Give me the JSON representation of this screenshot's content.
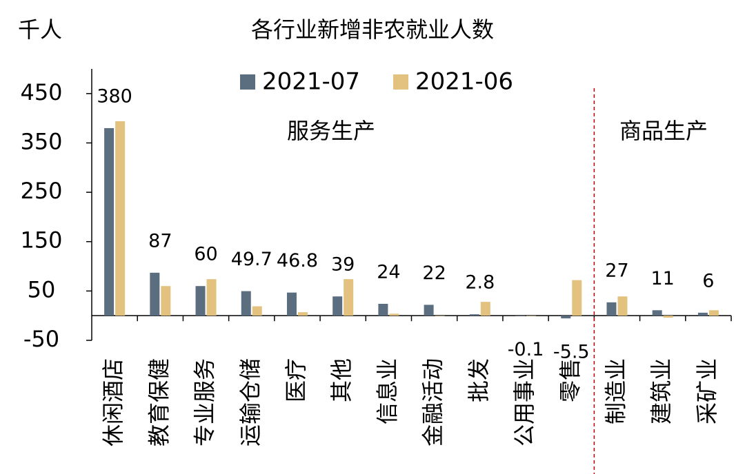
{
  "chart_data": {
    "type": "bar",
    "title": "各行业新增非农就业人数",
    "y_label": "千人",
    "annotations": [
      "服务生产",
      "商品生产"
    ],
    "categories": [
      "休闲酒店",
      "教育保健",
      "专业服务",
      "运输仓储",
      "医疗",
      "其他",
      "信息业",
      "金融活动",
      "批发",
      "公用事业",
      "零售",
      "制造业",
      "建筑业",
      "采矿业"
    ],
    "series": [
      {
        "name": "2021-07",
        "color": "#5b6e80",
        "values": [
          380,
          87,
          60,
          49.7,
          46.8,
          39,
          24,
          22,
          2.8,
          -0.1,
          -5.5,
          27,
          11,
          6
        ]
      },
      {
        "name": "2021-06",
        "color": "#e3c27f",
        "values": [
          394,
          60,
          74,
          19,
          7,
          74,
          4,
          0,
          28,
          0,
          72,
          39,
          -4,
          11
        ]
      }
    ],
    "ylim": [
      -50,
      500
    ],
    "yticks": [
      -50,
      50,
      150,
      250,
      350,
      450
    ],
    "grid": false
  }
}
